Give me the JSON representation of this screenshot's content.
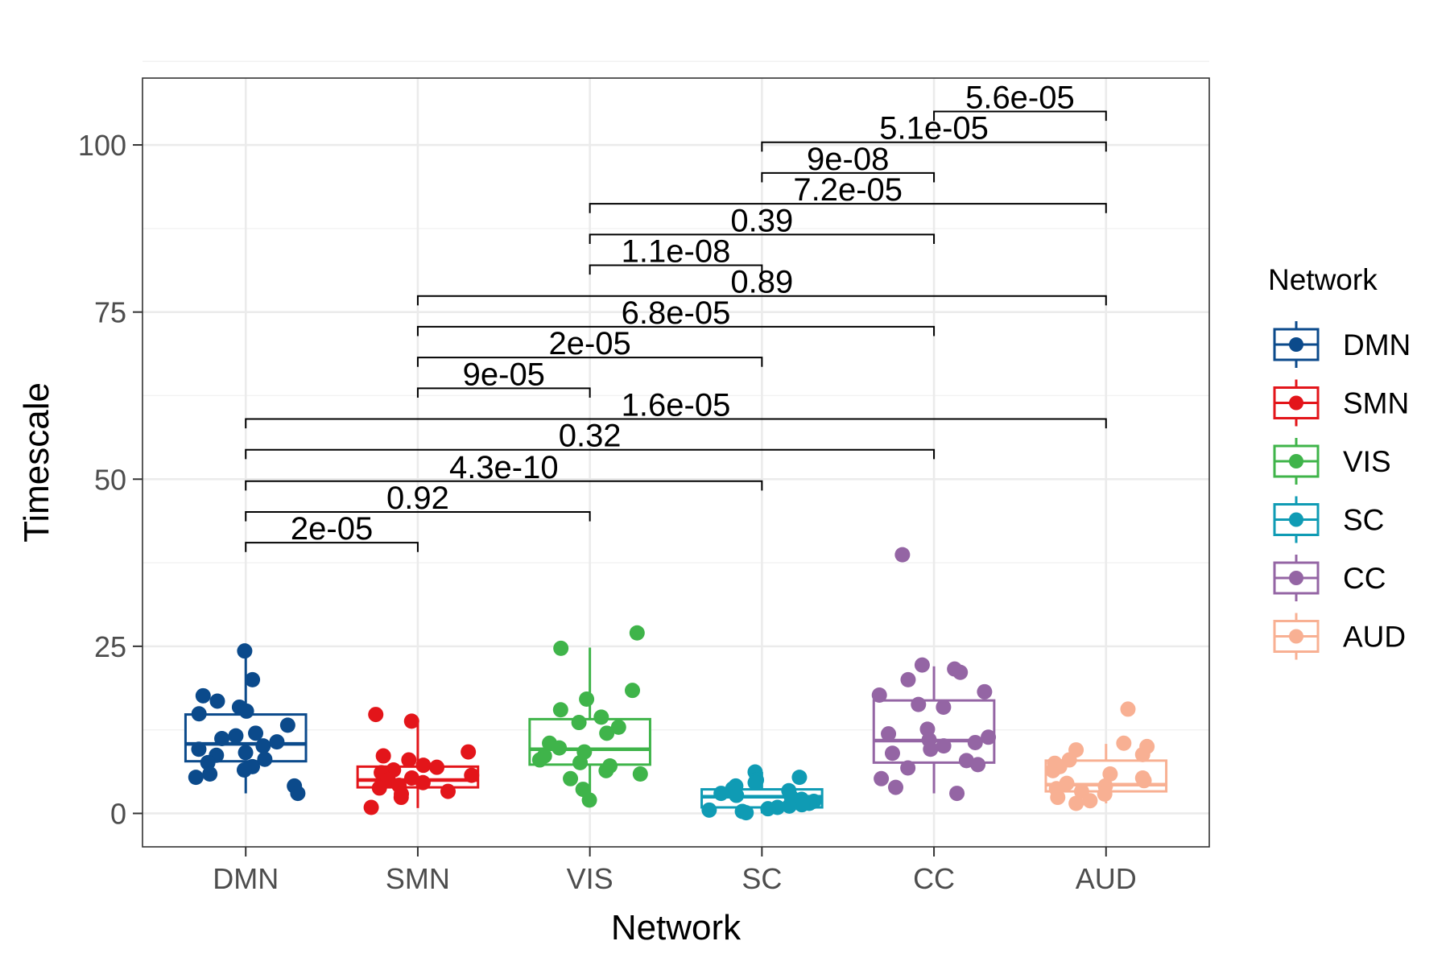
{
  "chart_data": {
    "type": "boxplot",
    "title": "",
    "xlabel": "Network",
    "ylabel": "Timescale",
    "categories": [
      "DMN",
      "SMN",
      "VIS",
      "SC",
      "CC",
      "AUD"
    ],
    "ylim": [
      -5,
      110
    ],
    "yticks": [
      0,
      25,
      50,
      75,
      100
    ],
    "grid": true,
    "legend": {
      "title": "Network",
      "position": "right",
      "items": [
        {
          "label": "DMN",
          "color": "#0b4a8b"
        },
        {
          "label": "SMN",
          "color": "#e3151a"
        },
        {
          "label": "VIS",
          "color": "#3fb44a"
        },
        {
          "label": "SC",
          "color": "#0f9bb4"
        },
        {
          "label": "CC",
          "color": "#9465a4"
        },
        {
          "label": "AUD",
          "color": "#f8b093"
        }
      ]
    },
    "boxes": [
      {
        "name": "DMN",
        "color": "#0b4a8b",
        "q1": 7.8,
        "median": 10.4,
        "q3": 14.8,
        "whisker_low": 3.0,
        "whisker_high": 24.0,
        "points": [
          24.3,
          20.0,
          17.6,
          16.8,
          15.9,
          15.3,
          14.9,
          13.2,
          12.0,
          11.6,
          11.2,
          10.7,
          10.1,
          9.6,
          9.1,
          8.7,
          8.1,
          7.6,
          7.0,
          6.5,
          5.9,
          5.4,
          4.1,
          3.0
        ]
      },
      {
        "name": "SMN",
        "color": "#e3151a",
        "q1": 3.9,
        "median": 5.0,
        "q3": 7.0,
        "whisker_low": 0.8,
        "whisker_high": 13.8,
        "points": [
          14.8,
          13.8,
          9.2,
          8.6,
          8.0,
          7.2,
          6.9,
          6.5,
          6.1,
          5.7,
          5.3,
          5.0,
          4.6,
          4.2,
          3.8,
          3.3,
          2.9,
          2.4,
          0.9
        ]
      },
      {
        "name": "VIS",
        "color": "#3fb44a",
        "q1": 7.3,
        "median": 9.6,
        "q3": 14.1,
        "whisker_low": 2.0,
        "whisker_high": 24.8,
        "points": [
          27.0,
          24.7,
          18.4,
          17.1,
          15.5,
          14.4,
          13.6,
          12.9,
          12.0,
          10.5,
          9.8,
          9.2,
          8.6,
          8.0,
          7.6,
          7.1,
          6.4,
          5.9,
          5.2,
          3.6,
          2.0
        ]
      },
      {
        "name": "SC",
        "color": "#0f9bb4",
        "q1": 0.9,
        "median": 2.5,
        "q3": 3.6,
        "whisker_low": 0.0,
        "whisker_high": 6.2,
        "points": [
          6.2,
          5.4,
          5.0,
          4.6,
          4.1,
          3.7,
          3.4,
          3.0,
          2.7,
          2.4,
          2.1,
          1.8,
          1.5,
          1.3,
          1.1,
          0.9,
          0.7,
          0.5,
          0.3,
          0.1
        ]
      },
      {
        "name": "CC",
        "color": "#9465a4",
        "q1": 7.6,
        "median": 10.9,
        "q3": 16.9,
        "whisker_low": 3.0,
        "whisker_high": 22.0,
        "points": [
          38.7,
          22.2,
          21.6,
          21.1,
          20.0,
          18.2,
          17.7,
          16.3,
          15.9,
          12.6,
          11.9,
          11.4,
          11.0,
          10.6,
          10.1,
          9.6,
          9.0,
          7.9,
          7.3,
          6.8,
          5.2,
          3.9,
          3.0
        ]
      },
      {
        "name": "AUD",
        "color": "#f8b093",
        "q1": 3.3,
        "median": 4.3,
        "q3": 7.9,
        "whisker_low": 1.5,
        "whisker_high": 10.4,
        "points": [
          15.6,
          10.5,
          10.0,
          9.5,
          8.8,
          8.0,
          7.5,
          7.0,
          6.4,
          5.9,
          5.3,
          4.9,
          4.5,
          4.1,
          3.7,
          3.3,
          2.9,
          2.4,
          1.9,
          1.5
        ]
      }
    ],
    "comparisons": [
      {
        "from": "DMN",
        "to": "SMN",
        "p": "2e-05",
        "y": 40.5
      },
      {
        "from": "DMN",
        "to": "VIS",
        "p": "0.92",
        "y": 45.1
      },
      {
        "from": "DMN",
        "to": "SC",
        "p": "4.3e-10",
        "y": 49.7
      },
      {
        "from": "DMN",
        "to": "CC",
        "p": "0.32",
        "y": 54.4
      },
      {
        "from": "DMN",
        "to": "AUD",
        "p": "1.6e-05",
        "y": 59.0
      },
      {
        "from": "SMN",
        "to": "VIS",
        "p": "9e-05",
        "y": 63.6
      },
      {
        "from": "SMN",
        "to": "SC",
        "p": "2e-05",
        "y": 68.2
      },
      {
        "from": "SMN",
        "to": "CC",
        "p": "6.8e-05",
        "y": 72.8
      },
      {
        "from": "SMN",
        "to": "AUD",
        "p": "0.89",
        "y": 77.4
      },
      {
        "from": "VIS",
        "to": "SC",
        "p": "1.1e-08",
        "y": 82.0
      },
      {
        "from": "VIS",
        "to": "CC",
        "p": "0.39",
        "y": 86.6
      },
      {
        "from": "VIS",
        "to": "AUD",
        "p": "7.2e-05",
        "y": 91.2
      },
      {
        "from": "SC",
        "to": "CC",
        "p": "9e-08",
        "y": 95.8
      },
      {
        "from": "SC",
        "to": "AUD",
        "p": "5.1e-05",
        "y": 100.4
      },
      {
        "from": "CC",
        "to": "AUD",
        "p": "5.6e-05",
        "y": 105.0
      }
    ]
  }
}
